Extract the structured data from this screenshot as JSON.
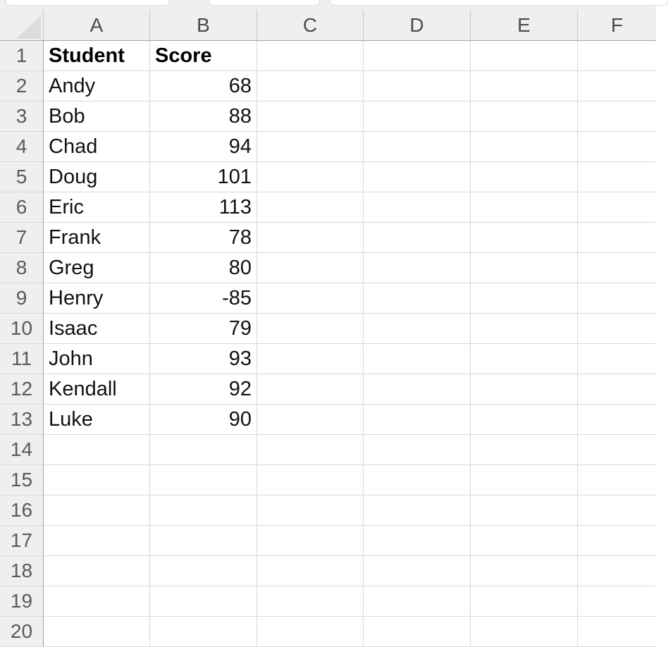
{
  "sheet": {
    "column_headers": [
      "A",
      "B",
      "C",
      "D",
      "E",
      "F"
    ],
    "row_headers": [
      "1",
      "2",
      "3",
      "4",
      "5",
      "6",
      "7",
      "8",
      "9",
      "10",
      "11",
      "12",
      "13",
      "14",
      "15",
      "16",
      "17",
      "18",
      "19",
      "20"
    ]
  },
  "table": {
    "header_row": {
      "student": "Student",
      "score": "Score"
    },
    "rows": [
      {
        "student": "Andy",
        "score": "68"
      },
      {
        "student": "Bob",
        "score": "88"
      },
      {
        "student": "Chad",
        "score": "94"
      },
      {
        "student": "Doug",
        "score": "101"
      },
      {
        "student": "Eric",
        "score": "113"
      },
      {
        "student": "Frank",
        "score": "78"
      },
      {
        "student": "Greg",
        "score": "80"
      },
      {
        "student": "Henry",
        "score": "-85"
      },
      {
        "student": "Isaac",
        "score": "79"
      },
      {
        "student": "John",
        "score": "93"
      },
      {
        "student": "Kendall",
        "score": "92"
      },
      {
        "student": "Luke",
        "score": "90"
      }
    ]
  },
  "colors": {
    "header_bg": "#f0efef",
    "grid_line": "#d9d9d9",
    "header_outer_border": "#a3a3a3",
    "header_separator": "#c9c9c9",
    "header_text": "#4a4a4a",
    "row_number_text": "#5a5a5a",
    "cell_text": "#111111",
    "select_all_triangle": "#dcdcdc",
    "toolbar_box_border": "#dcdcdc"
  }
}
